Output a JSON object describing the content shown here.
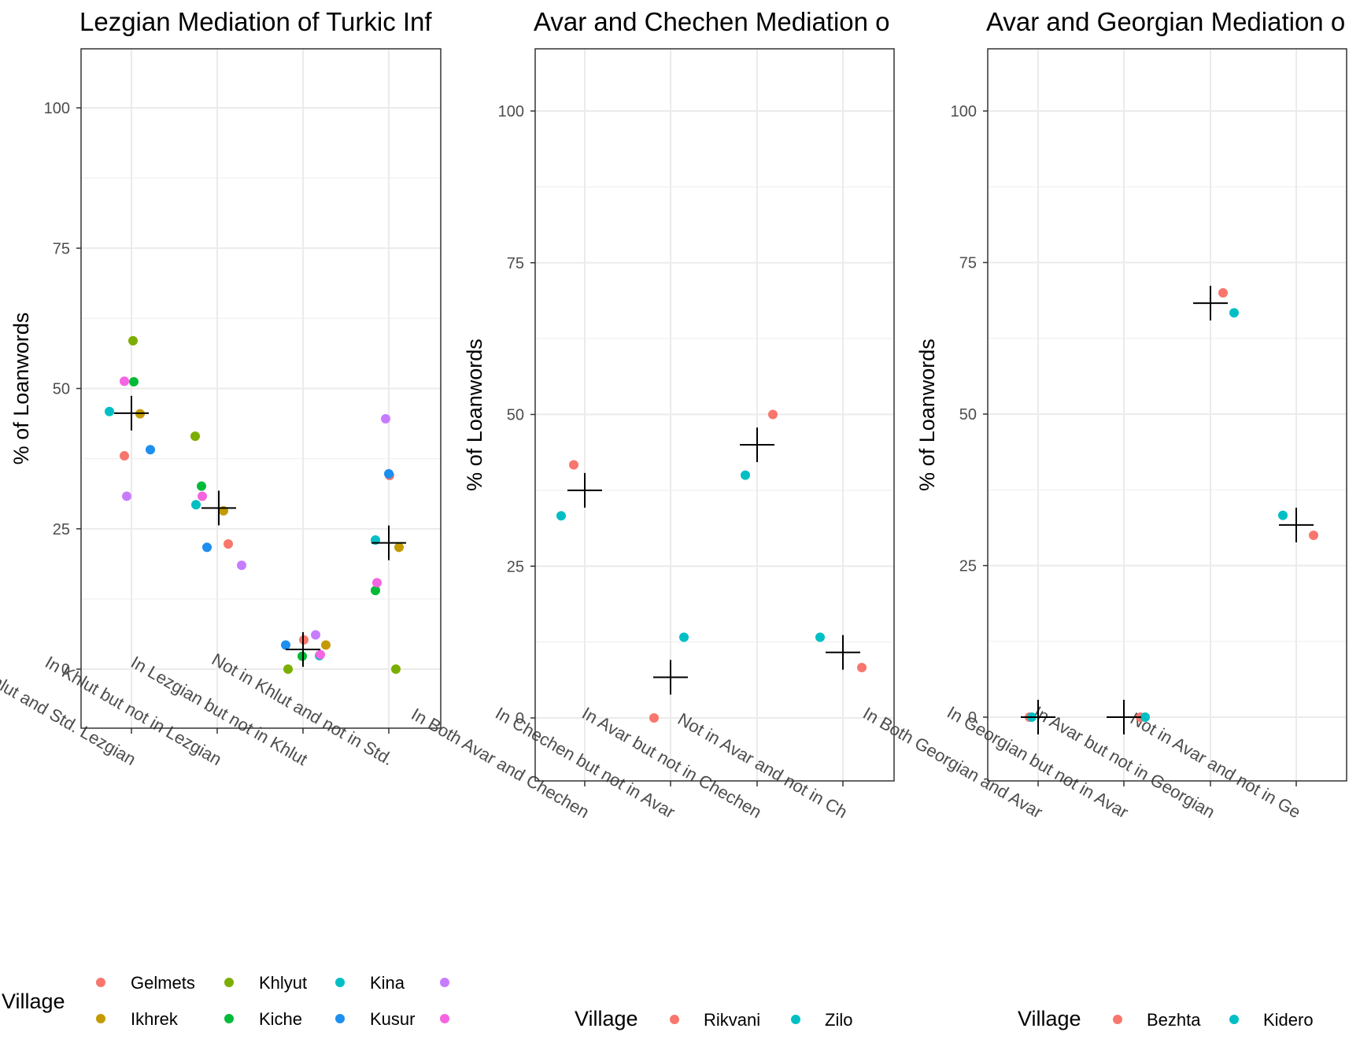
{
  "palette": {
    "Gelmets": "#F8766D",
    "Ikhrek": "#C49A00",
    "Khlyut": "#53B400",
    "Kiche": "#00C094",
    "Kina": "#00B6EB",
    "Kusur": "#00B6EB",
    "violet": "#C77CFF",
    "magenta": "#FB61D7"
  },
  "chart_data": [
    {
      "type": "scatter",
      "title": "Lezgian Mediation of Turkic Inf",
      "ylabel": "% of Loanwords",
      "xlabel": "",
      "ylim": [
        -10,
        110
      ],
      "yticks": [
        "0",
        "25",
        "50",
        "75",
        "100"
      ],
      "grid": true,
      "categories": [
        "In Both Khlut and Std. Lezgian",
        "In Khlut but not in Lezgian",
        "In Lezgian but not in Khlut",
        "Not in Khlut and not in Std."
      ],
      "series": [
        {
          "name": "Gelmets",
          "color": "#F8766D",
          "values": [
            38,
            22.3,
            5.2,
            34.5
          ]
        },
        {
          "name": "Ikhrek",
          "color": "#C49A00",
          "values": [
            45.5,
            28.2,
            4.3,
            21.7
          ]
        },
        {
          "name": "Khlyut",
          "color": "#7CAE00",
          "values": [
            58.5,
            41.5,
            0,
            0
          ]
        },
        {
          "name": "Kiche",
          "color": "#00BA38",
          "values": [
            51.2,
            32.6,
            2.3,
            14
          ]
        },
        {
          "name": "Kina",
          "color": "#00BFC4",
          "values": [
            45.9,
            29.3,
            2.4,
            23
          ]
        },
        {
          "name": "Kusur",
          "color": "#1C8FEF",
          "values": [
            39.1,
            21.7,
            4.3,
            34.8
          ]
        },
        {
          "name": "",
          "color": "#C77CFF",
          "values": [
            30.8,
            18.5,
            6.1,
            44.6
          ]
        },
        {
          "name": "",
          "color": "#F564E3",
          "values": [
            51.3,
            30.8,
            2.6,
            15.4
          ]
        }
      ],
      "means": [
        45.6,
        28.7,
        3.5,
        22.5
      ],
      "legend": {
        "position": "bottom",
        "title": "Village",
        "items": [
          "Gelmets",
          "Khlyut",
          "Kina",
          "",
          "Ikhrek",
          "Kiche",
          "Kusur",
          ""
        ]
      }
    },
    {
      "type": "scatter",
      "title": "Avar and Chechen Mediation o",
      "ylabel": "% of Loanwords",
      "xlabel": "",
      "ylim": [
        -10,
        110
      ],
      "yticks": [
        "0",
        "25",
        "50",
        "75",
        "100"
      ],
      "grid": true,
      "categories": [
        "In Both Avar and Chechen",
        "In Chechen but not in Avar",
        "In Avar but not in Chechen",
        "Not in Avar and not in Ch"
      ],
      "series": [
        {
          "name": "Rikvani",
          "color": "#F8766D",
          "values": [
            41.7,
            0,
            50,
            8.3
          ]
        },
        {
          "name": "Zilo",
          "color": "#00BFC4",
          "values": [
            33.3,
            13.3,
            40,
            13.3
          ]
        }
      ],
      "means": [
        37.5,
        6.7,
        45,
        10.8
      ],
      "legend": {
        "position": "bottom",
        "title": "Village",
        "items": [
          "Rikvani",
          "Zilo"
        ]
      }
    },
    {
      "type": "scatter",
      "title": "Avar and Georgian Mediation o",
      "ylabel": "% of Loanwords",
      "xlabel": "",
      "ylim": [
        -10,
        110
      ],
      "yticks": [
        "0",
        "25",
        "50",
        "75",
        "100"
      ],
      "grid": true,
      "categories": [
        "In Both Georgian and Avar",
        "In Georgian but not in Avar",
        "In Avar but not in Georgian",
        "Not in Avar and not in Ge"
      ],
      "series": [
        {
          "name": "Bezhta",
          "color": "#F8766D",
          "values": [
            0,
            0,
            70,
            30
          ]
        },
        {
          "name": "Kidero",
          "color": "#00BFC4",
          "values": [
            0,
            0,
            66.7,
            33.3
          ]
        }
      ],
      "means": [
        0,
        0,
        68.3,
        31.7
      ],
      "legend": {
        "position": "bottom",
        "title": "Village",
        "items": [
          "Bezhta",
          "Kidero"
        ]
      }
    }
  ]
}
